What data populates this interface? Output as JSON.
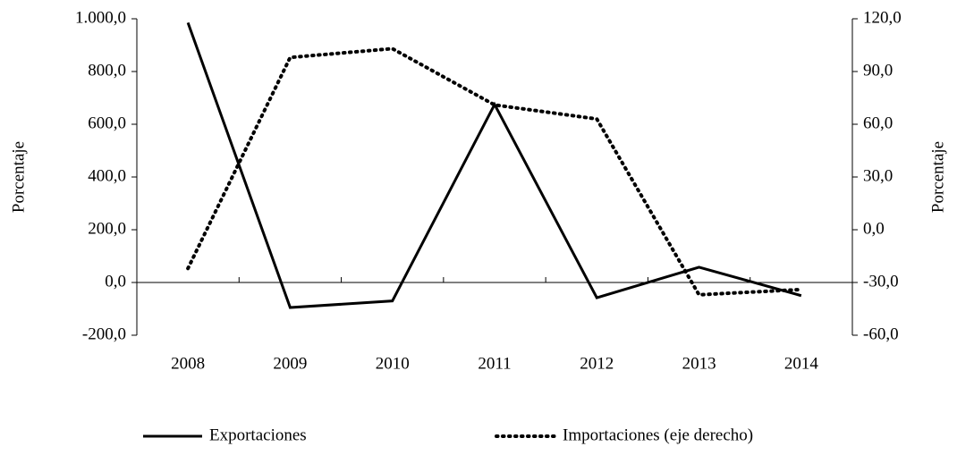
{
  "chart_data": {
    "type": "line",
    "categories": [
      "2008",
      "2009",
      "2010",
      "2011",
      "2012",
      "2013",
      "2014"
    ],
    "y_label": "Porcentaje",
    "y2_label": "Porcentaje",
    "series": [
      {
        "name": "Exportaciones",
        "color": "#000000",
        "line_style": "solid",
        "axis": "y",
        "values": [
          985,
          -95,
          -70,
          675,
          -58,
          58,
          -50
        ]
      },
      {
        "name": "Importaciones (eje derecho)",
        "color": "#000000",
        "line_style": "dotted",
        "axis": "y2",
        "values": [
          -22,
          98,
          103,
          71,
          63,
          -37,
          -34
        ]
      }
    ],
    "ylim": [
      -200,
      1000
    ],
    "yticks": [
      {
        "value": -200,
        "label": "-200,0"
      },
      {
        "value": 0,
        "label": "0,0"
      },
      {
        "value": 200,
        "label": "200,0"
      },
      {
        "value": 400,
        "label": "400,0"
      },
      {
        "value": 600,
        "label": "600,0"
      },
      {
        "value": 800,
        "label": "800,0"
      },
      {
        "value": 1000,
        "label": "1.000,0"
      }
    ],
    "y2lim": [
      -60,
      120
    ],
    "y2ticks": [
      {
        "value": -60,
        "label": "-60,0"
      },
      {
        "value": -30,
        "label": "-30,0"
      },
      {
        "value": 0,
        "label": "0,0"
      },
      {
        "value": 30,
        "label": "30,0"
      },
      {
        "value": 60,
        "label": "60,0"
      },
      {
        "value": 90,
        "label": "90,0"
      },
      {
        "value": 120,
        "label": "120,0"
      }
    ],
    "legend": "bottom"
  }
}
